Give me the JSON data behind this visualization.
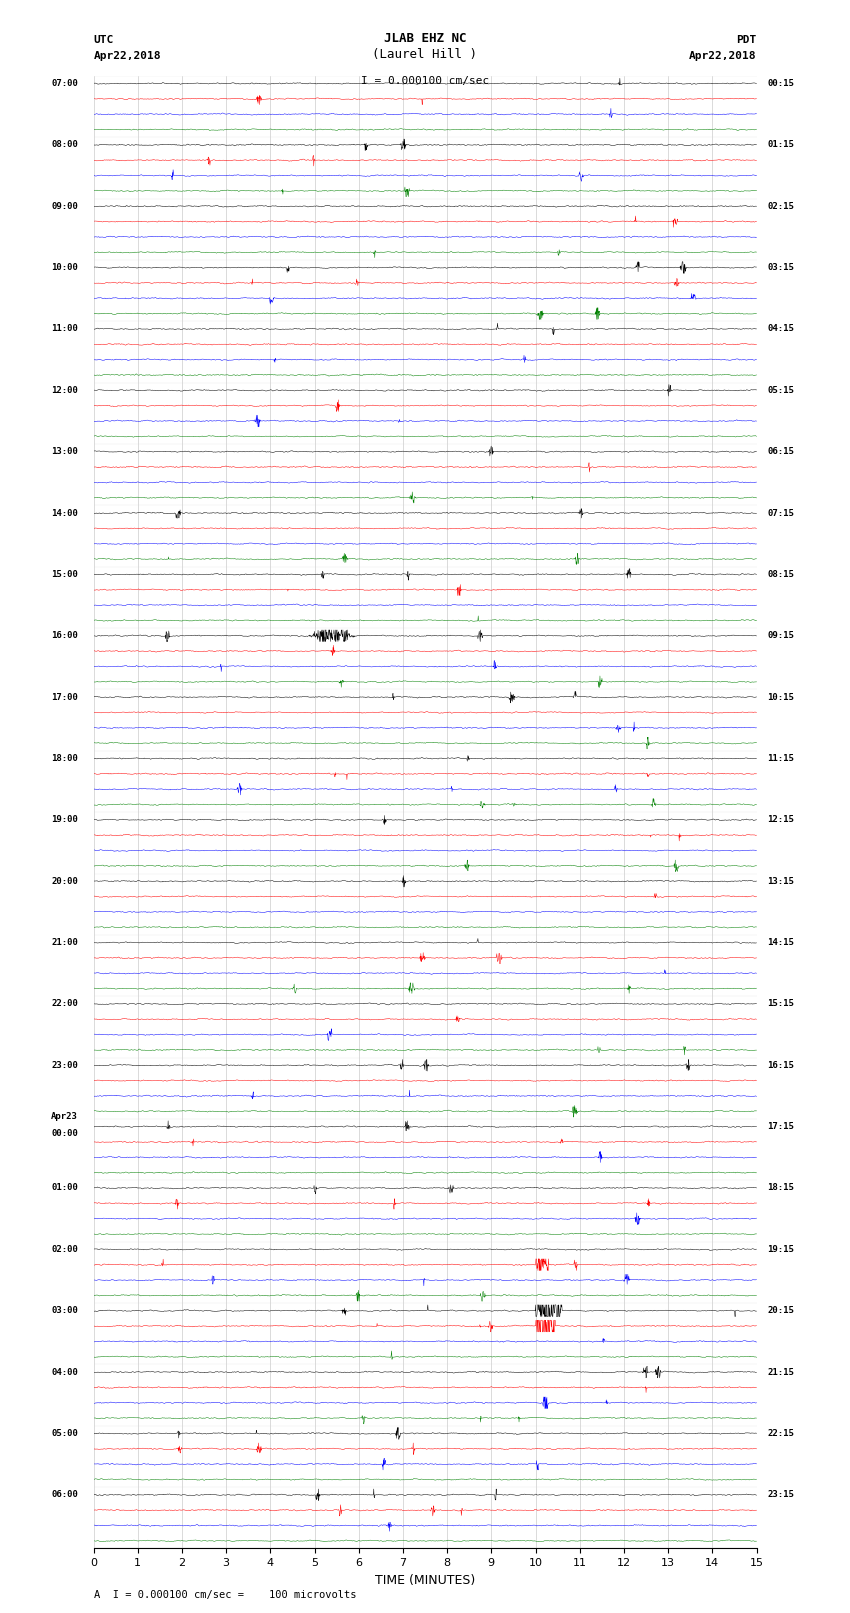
{
  "title_line1": "JLAB EHZ NC",
  "title_line2": "(Laurel Hill )",
  "scale_text": "I = 0.000100 cm/sec",
  "utc_label": "UTC",
  "pdt_label": "PDT",
  "date_left": "Apr22,2018",
  "date_right": "Apr22,2018",
  "xlabel": "TIME (MINUTES)",
  "footer": "A  I = 0.000100 cm/sec =    100 microvolts",
  "trace_colors": [
    "black",
    "red",
    "blue",
    "green"
  ],
  "x_min": 0,
  "x_max": 15,
  "x_ticks": [
    0,
    1,
    2,
    3,
    4,
    5,
    6,
    7,
    8,
    9,
    10,
    11,
    12,
    13,
    14,
    15
  ],
  "bg_color": "white",
  "fig_width": 8.5,
  "fig_height": 16.13,
  "utc_times": [
    "07:00",
    "08:00",
    "09:00",
    "10:00",
    "11:00",
    "12:00",
    "13:00",
    "14:00",
    "15:00",
    "16:00",
    "17:00",
    "18:00",
    "19:00",
    "20:00",
    "21:00",
    "22:00",
    "23:00",
    "Apr23\n00:00",
    "01:00",
    "02:00",
    "03:00",
    "04:00",
    "05:00",
    "06:00"
  ],
  "pdt_times": [
    "00:15",
    "01:15",
    "02:15",
    "03:15",
    "04:15",
    "05:15",
    "06:15",
    "07:15",
    "08:15",
    "09:15",
    "10:15",
    "11:15",
    "12:15",
    "13:15",
    "14:15",
    "15:15",
    "16:15",
    "17:15",
    "18:15",
    "19:15",
    "20:15",
    "21:15",
    "22:15",
    "23:15"
  ],
  "num_rows": 24,
  "traces_per_row": 4,
  "seed": 42
}
